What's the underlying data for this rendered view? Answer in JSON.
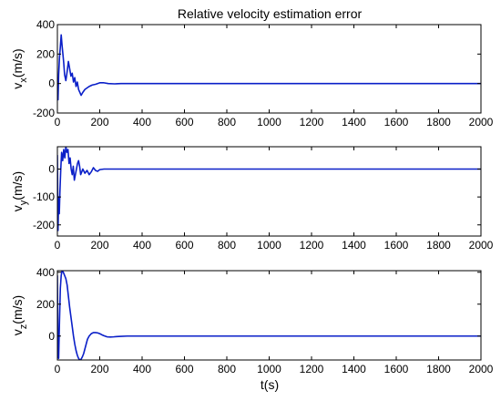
{
  "figure": {
    "title": "Relative velocity estimation error",
    "xlabel": "t(s)"
  },
  "chart_data": [
    {
      "type": "line",
      "title": "Relative velocity estimation error",
      "ylabel": {
        "base": "v",
        "sub": "x",
        "unit": "(m/s)"
      },
      "xlim": [
        0,
        2000
      ],
      "ylim": [
        -200,
        400
      ],
      "xticks": [
        0,
        200,
        400,
        600,
        800,
        1000,
        1200,
        1400,
        1600,
        1800,
        2000
      ],
      "yticks": [
        -200,
        0,
        200,
        400
      ],
      "grid": false,
      "color": "#0a1fc8",
      "series": [
        {
          "x": [
            0,
            3,
            6,
            10,
            14,
            18,
            22,
            26,
            30,
            34,
            40,
            46,
            52,
            58,
            64,
            70,
            76,
            82,
            88,
            94,
            100,
            106,
            112,
            120,
            130,
            140,
            150,
            165,
            180,
            200,
            220,
            240,
            270,
            300,
            350,
            400,
            600,
            800,
            1000,
            1200,
            1400,
            1600,
            1800,
            2000
          ],
          "y": [
            -80,
            -110,
            60,
            180,
            250,
            330,
            260,
            200,
            140,
            60,
            20,
            80,
            150,
            100,
            50,
            70,
            10,
            40,
            -20,
            10,
            -40,
            -60,
            -80,
            -60,
            -40,
            -30,
            -20,
            -10,
            -5,
            5,
            5,
            0,
            -2,
            0,
            0,
            0,
            0,
            0,
            0,
            0,
            0,
            0,
            0,
            0
          ]
        }
      ]
    },
    {
      "type": "line",
      "ylabel": {
        "base": "v",
        "sub": "y",
        "unit": "(m/s)"
      },
      "xlim": [
        0,
        2000
      ],
      "ylim": [
        -240,
        80
      ],
      "xticks": [
        0,
        200,
        400,
        600,
        800,
        1000,
        1200,
        1400,
        1600,
        1800,
        2000
      ],
      "yticks": [
        -200,
        -100,
        0
      ],
      "grid": false,
      "color": "#0a1fc8",
      "series": [
        {
          "x": [
            0,
            3,
            6,
            9,
            12,
            16,
            20,
            25,
            30,
            35,
            40,
            45,
            50,
            55,
            60,
            65,
            70,
            75,
            80,
            85,
            90,
            95,
            100,
            105,
            110,
            115,
            120,
            130,
            140,
            150,
            160,
            170,
            180,
            190,
            200,
            220,
            240,
            260,
            280,
            300,
            350,
            400,
            600,
            800,
            1000,
            1200,
            1400,
            1600,
            1800,
            2000
          ],
          "y": [
            50,
            -220,
            -100,
            -160,
            -80,
            0,
            60,
            30,
            70,
            40,
            80,
            60,
            70,
            20,
            40,
            0,
            -20,
            10,
            -40,
            -20,
            0,
            20,
            30,
            10,
            -20,
            -10,
            0,
            -15,
            -5,
            -20,
            -10,
            5,
            -5,
            -8,
            -2,
            0,
            0,
            0,
            0,
            0,
            0,
            0,
            0,
            0,
            0,
            0,
            0,
            0,
            0,
            0
          ]
        }
      ]
    },
    {
      "type": "line",
      "ylabel": {
        "base": "v",
        "sub": "z",
        "unit": "(m/s)"
      },
      "xlim": [
        0,
        2000
      ],
      "ylim": [
        -150,
        410
      ],
      "xticks": [
        0,
        200,
        400,
        600,
        800,
        1000,
        1200,
        1400,
        1600,
        1800,
        2000
      ],
      "xticklabels": [
        "0",
        "200",
        "400",
        "600",
        "800",
        "1000",
        "1200",
        "1400",
        "1600",
        "1800",
        "2000"
      ],
      "yticks": [
        0,
        200,
        400
      ],
      "grid": false,
      "color": "#0a1fc8",
      "series": [
        {
          "x": [
            0,
            3,
            6,
            10,
            14,
            18,
            22,
            28,
            34,
            40,
            46,
            52,
            58,
            64,
            70,
            76,
            82,
            88,
            94,
            100,
            106,
            112,
            118,
            124,
            130,
            136,
            142,
            150,
            160,
            170,
            180,
            190,
            200,
            210,
            220,
            235,
            250,
            265,
            280,
            300,
            330,
            360,
            400,
            600,
            800,
            1000,
            1200,
            1400,
            1600,
            1800,
            2000
          ],
          "y": [
            380,
            -120,
            -140,
            100,
            300,
            380,
            410,
            400,
            380,
            360,
            320,
            250,
            180,
            120,
            60,
            0,
            -50,
            -90,
            -120,
            -140,
            -150,
            -145,
            -130,
            -110,
            -80,
            -50,
            -20,
            0,
            15,
            22,
            22,
            20,
            15,
            8,
            2,
            -5,
            -6,
            -5,
            -3,
            -2,
            0,
            0,
            0,
            0,
            0,
            0,
            0,
            0,
            0,
            0,
            0
          ]
        }
      ]
    }
  ]
}
